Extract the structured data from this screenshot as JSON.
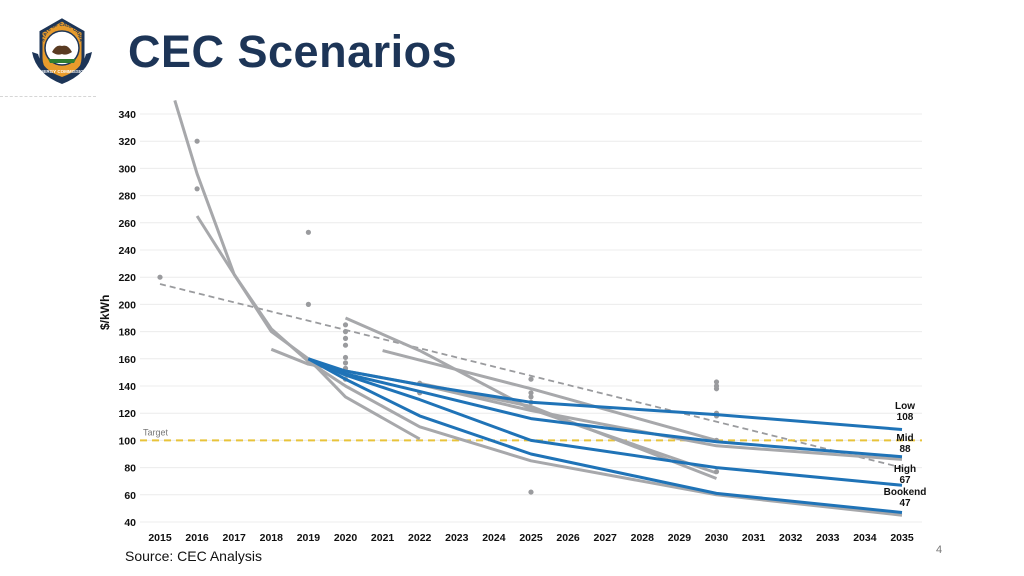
{
  "header": {
    "title": "CEC Scenarios",
    "logo_top_text": "STATE OF CALIFORNIA",
    "logo_bottom_text": "ENERGY COMMISSION"
  },
  "footer": {
    "source": "Source: CEC Analysis",
    "page_number": "4"
  },
  "colors": {
    "title": "#1d3557",
    "scenario_line": "#1f73b7",
    "other_line": "#a7a8ab",
    "point": "#9a9b9e",
    "target_line": "#e8c33a",
    "trend_line": "#9a9b9e"
  },
  "chart_data": {
    "type": "line",
    "title": "",
    "xlabel": "",
    "ylabel": "$/kWh",
    "xlim": [
      2015,
      2035
    ],
    "ylim": [
      40,
      340
    ],
    "x_ticks": [
      "2015",
      "2016",
      "2017",
      "2018",
      "2019",
      "2020",
      "2021",
      "2022",
      "2023",
      "2024",
      "2025",
      "2026",
      "2027",
      "2028",
      "2029",
      "2030",
      "2031",
      "2032",
      "2033",
      "2034",
      "2035"
    ],
    "y_ticks": [
      40,
      60,
      80,
      100,
      120,
      140,
      160,
      180,
      200,
      220,
      240,
      260,
      280,
      300,
      320,
      340
    ],
    "grid": "horizontal",
    "target": {
      "label": "Target",
      "value": 100
    },
    "scenarios": [
      {
        "name": "Low",
        "end_value": "108",
        "points": [
          [
            2019,
            160
          ],
          [
            2020,
            151
          ],
          [
            2022,
            141
          ],
          [
            2025,
            128
          ],
          [
            2030,
            119
          ],
          [
            2035,
            108
          ]
        ]
      },
      {
        "name": "Mid",
        "end_value": "88",
        "points": [
          [
            2019,
            160
          ],
          [
            2020,
            149
          ],
          [
            2022,
            136
          ],
          [
            2025,
            116
          ],
          [
            2030,
            99
          ],
          [
            2035,
            88
          ]
        ]
      },
      {
        "name": "High",
        "end_value": "67",
        "points": [
          [
            2019,
            160
          ],
          [
            2020,
            148
          ],
          [
            2022,
            130
          ],
          [
            2025,
            100
          ],
          [
            2030,
            80
          ],
          [
            2035,
            67
          ]
        ]
      },
      {
        "name": "Bookend",
        "end_value": "47",
        "points": [
          [
            2019,
            160
          ],
          [
            2020,
            145
          ],
          [
            2022,
            118
          ],
          [
            2025,
            90
          ],
          [
            2030,
            61
          ],
          [
            2035,
            47
          ]
        ]
      }
    ],
    "other_projections": [
      {
        "points": [
          [
            2015.4,
            350
          ],
          [
            2016,
            296
          ],
          [
            2017,
            222
          ],
          [
            2018,
            180
          ],
          [
            2019,
            160
          ],
          [
            2020,
            132
          ],
          [
            2022,
            101
          ]
        ]
      },
      {
        "points": [
          [
            2016,
            265
          ],
          [
            2017,
            222
          ],
          [
            2018,
            182
          ],
          [
            2019,
            158
          ],
          [
            2020,
            140
          ],
          [
            2022,
            110
          ],
          [
            2025,
            85
          ],
          [
            2030,
            60
          ],
          [
            2035,
            45
          ]
        ]
      },
      {
        "points": [
          [
            2018,
            167
          ],
          [
            2019,
            156
          ],
          [
            2022,
            141
          ],
          [
            2025,
            122
          ],
          [
            2030,
            96
          ],
          [
            2035,
            86
          ]
        ]
      },
      {
        "points": [
          [
            2020,
            190
          ],
          [
            2022,
            166
          ],
          [
            2025,
            123
          ],
          [
            2030,
            76
          ]
        ]
      },
      {
        "points": [
          [
            2021,
            166
          ],
          [
            2025,
            138
          ],
          [
            2030,
            100
          ]
        ]
      },
      {
        "points": [
          [
            2022,
            142
          ],
          [
            2025,
            125
          ],
          [
            2030,
            72
          ]
        ]
      }
    ],
    "trend_line": {
      "points": [
        [
          2015,
          215
        ],
        [
          2035,
          80
        ]
      ]
    },
    "scatter": [
      [
        2015,
        220
      ],
      [
        2016,
        320
      ],
      [
        2016,
        285
      ],
      [
        2019,
        253
      ],
      [
        2019,
        200
      ],
      [
        2020,
        185
      ],
      [
        2020,
        180
      ],
      [
        2020,
        175
      ],
      [
        2020,
        170
      ],
      [
        2020,
        161
      ],
      [
        2020,
        157
      ],
      [
        2020,
        153
      ],
      [
        2020,
        145
      ],
      [
        2022,
        142
      ],
      [
        2022,
        135
      ],
      [
        2025,
        145
      ],
      [
        2025,
        135
      ],
      [
        2025,
        132
      ],
      [
        2025,
        128
      ],
      [
        2025,
        62
      ],
      [
        2030,
        143
      ],
      [
        2030,
        140
      ],
      [
        2030,
        138
      ],
      [
        2030,
        120
      ],
      [
        2030,
        118
      ],
      [
        2030,
        100
      ],
      [
        2030,
        77
      ]
    ]
  }
}
